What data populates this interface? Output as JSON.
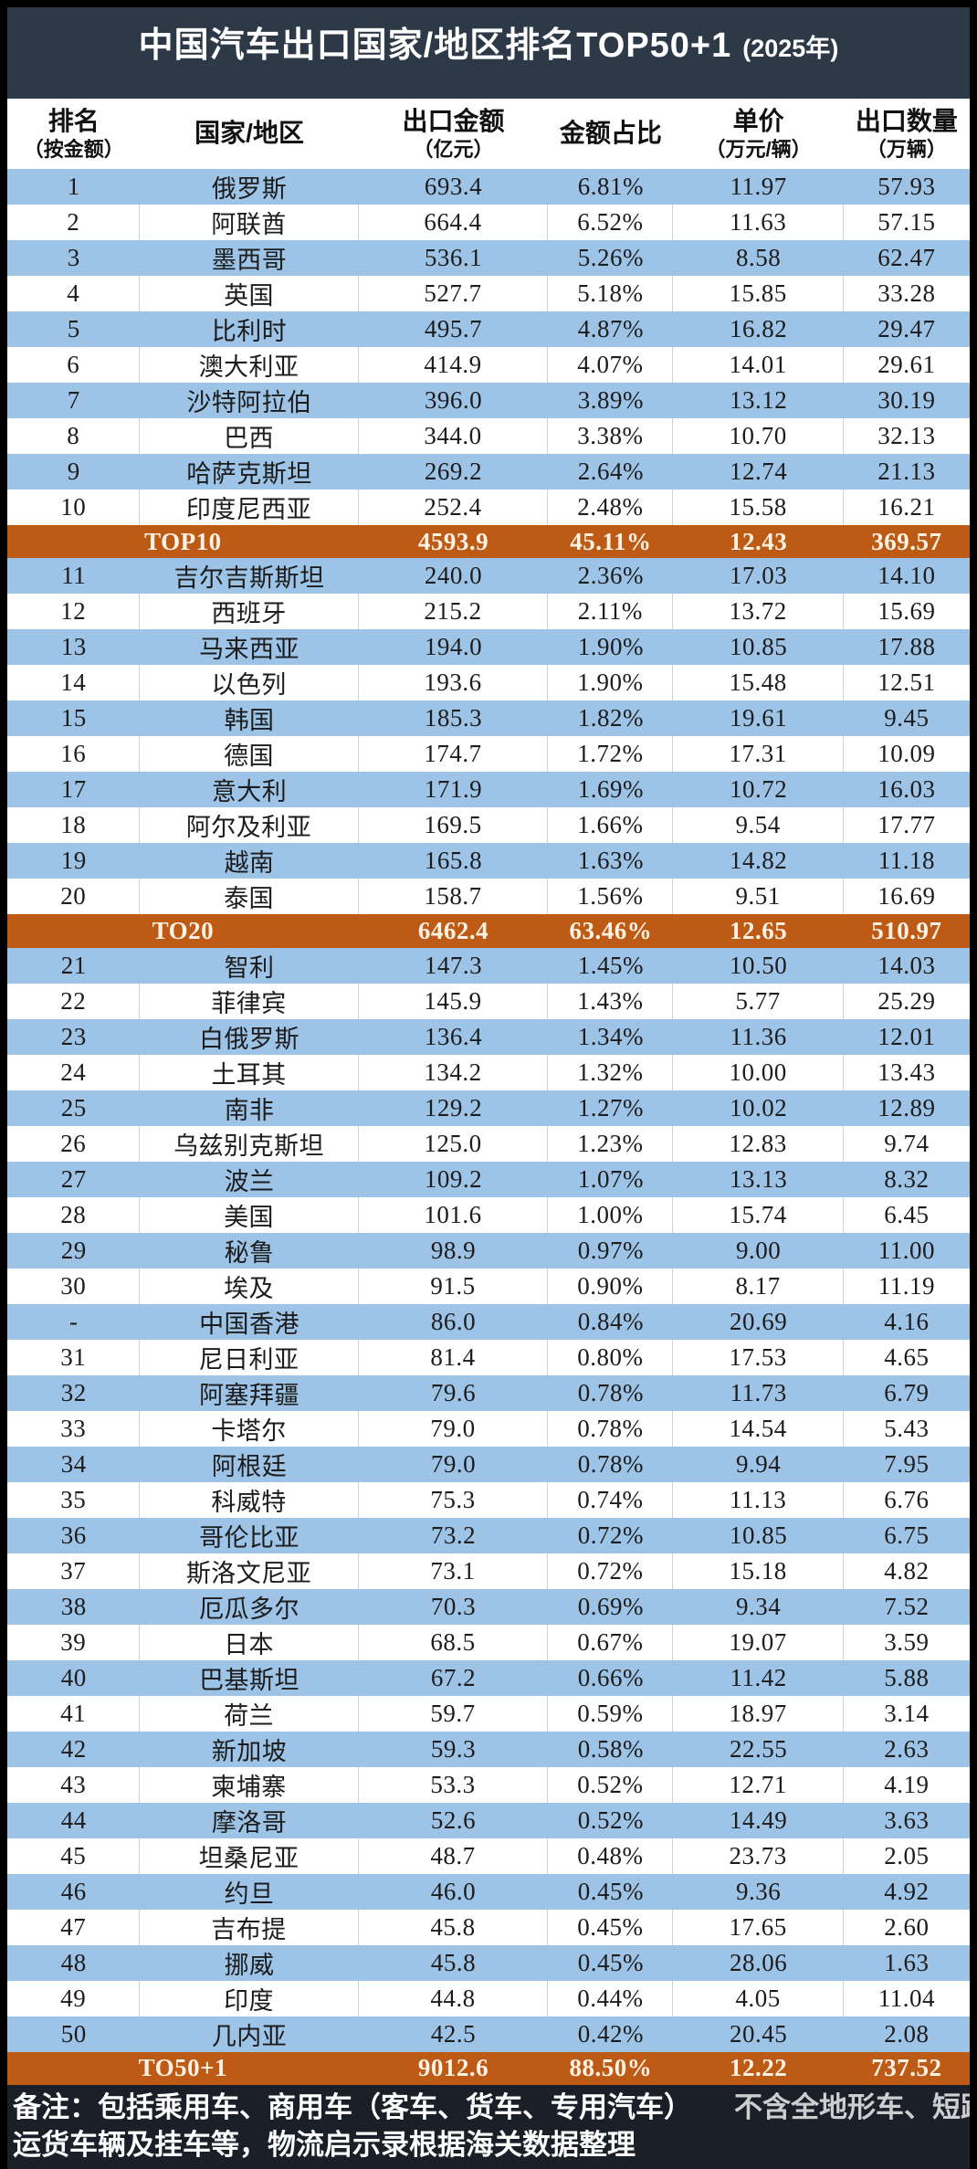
{
  "title": {
    "main": "中国汽车出口国家/地区排名TOP50+1",
    "year": "(2025年)"
  },
  "header": {
    "columns": [
      {
        "label": "排名",
        "sub": "（按金额）"
      },
      {
        "label": "国家/地区",
        "sub": ""
      },
      {
        "label": "出口金额",
        "sub": "（亿元）"
      },
      {
        "label": "金额占比",
        "sub": ""
      },
      {
        "label": "单价",
        "sub": "（万元/辆）"
      },
      {
        "label": "出口数量",
        "sub": "（万辆）"
      }
    ]
  },
  "table": {
    "rows": [
      {
        "rank": "1",
        "country": "俄罗斯",
        "amount": "693.4",
        "share": "6.81%",
        "price": "11.97",
        "qty": "57.93",
        "style": "blue"
      },
      {
        "rank": "2",
        "country": "阿联酋",
        "amount": "664.4",
        "share": "6.52%",
        "price": "11.63",
        "qty": "57.15",
        "style": "white"
      },
      {
        "rank": "3",
        "country": "墨西哥",
        "amount": "536.1",
        "share": "5.26%",
        "price": "8.58",
        "qty": "62.47",
        "style": "blue"
      },
      {
        "rank": "4",
        "country": "英国",
        "amount": "527.7",
        "share": "5.18%",
        "price": "15.85",
        "qty": "33.28",
        "style": "white"
      },
      {
        "rank": "5",
        "country": "比利时",
        "amount": "495.7",
        "share": "4.87%",
        "price": "16.82",
        "qty": "29.47",
        "style": "blue"
      },
      {
        "rank": "6",
        "country": "澳大利亚",
        "amount": "414.9",
        "share": "4.07%",
        "price": "14.01",
        "qty": "29.61",
        "style": "white"
      },
      {
        "rank": "7",
        "country": "沙特阿拉伯",
        "amount": "396.0",
        "share": "3.89%",
        "price": "13.12",
        "qty": "30.19",
        "style": "blue"
      },
      {
        "rank": "8",
        "country": "巴西",
        "amount": "344.0",
        "share": "3.38%",
        "price": "10.70",
        "qty": "32.13",
        "style": "white"
      },
      {
        "rank": "9",
        "country": "哈萨克斯坦",
        "amount": "269.2",
        "share": "2.64%",
        "price": "12.74",
        "qty": "21.13",
        "style": "blue"
      },
      {
        "rank": "10",
        "country": "印度尼西亚",
        "amount": "252.4",
        "share": "2.48%",
        "price": "15.58",
        "qty": "16.21",
        "style": "white"
      },
      {
        "label": "TOP10",
        "amount": "4593.9",
        "share": "45.11%",
        "price": "12.43",
        "qty": "369.57",
        "style": "summary"
      },
      {
        "rank": "11",
        "country": "吉尔吉斯斯坦",
        "amount": "240.0",
        "share": "2.36%",
        "price": "17.03",
        "qty": "14.10",
        "style": "blue"
      },
      {
        "rank": "12",
        "country": "西班牙",
        "amount": "215.2",
        "share": "2.11%",
        "price": "13.72",
        "qty": "15.69",
        "style": "white"
      },
      {
        "rank": "13",
        "country": "马来西亚",
        "amount": "194.0",
        "share": "1.90%",
        "price": "10.85",
        "qty": "17.88",
        "style": "blue"
      },
      {
        "rank": "14",
        "country": "以色列",
        "amount": "193.6",
        "share": "1.90%",
        "price": "15.48",
        "qty": "12.51",
        "style": "white"
      },
      {
        "rank": "15",
        "country": "韩国",
        "amount": "185.3",
        "share": "1.82%",
        "price": "19.61",
        "qty": "9.45",
        "style": "blue"
      },
      {
        "rank": "16",
        "country": "德国",
        "amount": "174.7",
        "share": "1.72%",
        "price": "17.31",
        "qty": "10.09",
        "style": "white"
      },
      {
        "rank": "17",
        "country": "意大利",
        "amount": "171.9",
        "share": "1.69%",
        "price": "10.72",
        "qty": "16.03",
        "style": "blue"
      },
      {
        "rank": "18",
        "country": "阿尔及利亚",
        "amount": "169.5",
        "share": "1.66%",
        "price": "9.54",
        "qty": "17.77",
        "style": "white"
      },
      {
        "rank": "19",
        "country": "越南",
        "amount": "165.8",
        "share": "1.63%",
        "price": "14.82",
        "qty": "11.18",
        "style": "blue"
      },
      {
        "rank": "20",
        "country": "泰国",
        "amount": "158.7",
        "share": "1.56%",
        "price": "9.51",
        "qty": "16.69",
        "style": "white"
      },
      {
        "label": "TO20",
        "amount": "6462.4",
        "share": "63.46%",
        "price": "12.65",
        "qty": "510.97",
        "style": "summary"
      },
      {
        "rank": "21",
        "country": "智利",
        "amount": "147.3",
        "share": "1.45%",
        "price": "10.50",
        "qty": "14.03",
        "style": "blue"
      },
      {
        "rank": "22",
        "country": "菲律宾",
        "amount": "145.9",
        "share": "1.43%",
        "price": "5.77",
        "qty": "25.29",
        "style": "white"
      },
      {
        "rank": "23",
        "country": "白俄罗斯",
        "amount": "136.4",
        "share": "1.34%",
        "price": "11.36",
        "qty": "12.01",
        "style": "blue"
      },
      {
        "rank": "24",
        "country": "土耳其",
        "amount": "134.2",
        "share": "1.32%",
        "price": "10.00",
        "qty": "13.43",
        "style": "white"
      },
      {
        "rank": "25",
        "country": "南非",
        "amount": "129.2",
        "share": "1.27%",
        "price": "10.02",
        "qty": "12.89",
        "style": "blue"
      },
      {
        "rank": "26",
        "country": "乌兹别克斯坦",
        "amount": "125.0",
        "share": "1.23%",
        "price": "12.83",
        "qty": "9.74",
        "style": "white"
      },
      {
        "rank": "27",
        "country": "波兰",
        "amount": "109.2",
        "share": "1.07%",
        "price": "13.13",
        "qty": "8.32",
        "style": "blue"
      },
      {
        "rank": "28",
        "country": "美国",
        "amount": "101.6",
        "share": "1.00%",
        "price": "15.74",
        "qty": "6.45",
        "style": "white"
      },
      {
        "rank": "29",
        "country": "秘鲁",
        "amount": "98.9",
        "share": "0.97%",
        "price": "9.00",
        "qty": "11.00",
        "style": "blue"
      },
      {
        "rank": "30",
        "country": "埃及",
        "amount": "91.5",
        "share": "0.90%",
        "price": "8.17",
        "qty": "11.19",
        "style": "white"
      },
      {
        "rank": "-",
        "country": "中国香港",
        "amount": "86.0",
        "share": "0.84%",
        "price": "20.69",
        "qty": "4.16",
        "style": "blue"
      },
      {
        "rank": "31",
        "country": "尼日利亚",
        "amount": "81.4",
        "share": "0.80%",
        "price": "17.53",
        "qty": "4.65",
        "style": "white"
      },
      {
        "rank": "32",
        "country": "阿塞拜疆",
        "amount": "79.6",
        "share": "0.78%",
        "price": "11.73",
        "qty": "6.79",
        "style": "blue"
      },
      {
        "rank": "33",
        "country": "卡塔尔",
        "amount": "79.0",
        "share": "0.78%",
        "price": "14.54",
        "qty": "5.43",
        "style": "white"
      },
      {
        "rank": "34",
        "country": "阿根廷",
        "amount": "79.0",
        "share": "0.78%",
        "price": "9.94",
        "qty": "7.95",
        "style": "blue"
      },
      {
        "rank": "35",
        "country": "科威特",
        "amount": "75.3",
        "share": "0.74%",
        "price": "11.13",
        "qty": "6.76",
        "style": "white"
      },
      {
        "rank": "36",
        "country": "哥伦比亚",
        "amount": "73.2",
        "share": "0.72%",
        "price": "10.85",
        "qty": "6.75",
        "style": "blue"
      },
      {
        "rank": "37",
        "country": "斯洛文尼亚",
        "amount": "73.1",
        "share": "0.72%",
        "price": "15.18",
        "qty": "4.82",
        "style": "white"
      },
      {
        "rank": "38",
        "country": "厄瓜多尔",
        "amount": "70.3",
        "share": "0.69%",
        "price": "9.34",
        "qty": "7.52",
        "style": "blue"
      },
      {
        "rank": "39",
        "country": "日本",
        "amount": "68.5",
        "share": "0.67%",
        "price": "19.07",
        "qty": "3.59",
        "style": "white"
      },
      {
        "rank": "40",
        "country": "巴基斯坦",
        "amount": "67.2",
        "share": "0.66%",
        "price": "11.42",
        "qty": "5.88",
        "style": "blue"
      },
      {
        "rank": "41",
        "country": "荷兰",
        "amount": "59.7",
        "share": "0.59%",
        "price": "18.97",
        "qty": "3.14",
        "style": "white"
      },
      {
        "rank": "42",
        "country": "新加坡",
        "amount": "59.3",
        "share": "0.58%",
        "price": "22.55",
        "qty": "2.63",
        "style": "blue"
      },
      {
        "rank": "43",
        "country": "柬埔寨",
        "amount": "53.3",
        "share": "0.52%",
        "price": "12.71",
        "qty": "4.19",
        "style": "white"
      },
      {
        "rank": "44",
        "country": "摩洛哥",
        "amount": "52.6",
        "share": "0.52%",
        "price": "14.49",
        "qty": "3.63",
        "style": "blue"
      },
      {
        "rank": "45",
        "country": "坦桑尼亚",
        "amount": "48.7",
        "share": "0.48%",
        "price": "23.73",
        "qty": "2.05",
        "style": "white"
      },
      {
        "rank": "46",
        "country": "约旦",
        "amount": "46.0",
        "share": "0.45%",
        "price": "9.36",
        "qty": "4.92",
        "style": "blue"
      },
      {
        "rank": "47",
        "country": "吉布提",
        "amount": "45.8",
        "share": "0.45%",
        "price": "17.65",
        "qty": "2.60",
        "style": "white"
      },
      {
        "rank": "48",
        "country": "挪威",
        "amount": "45.8",
        "share": "0.45%",
        "price": "28.06",
        "qty": "1.63",
        "style": "blue"
      },
      {
        "rank": "49",
        "country": "印度",
        "amount": "44.8",
        "share": "0.44%",
        "price": "4.05",
        "qty": "11.04",
        "style": "white"
      },
      {
        "rank": "50",
        "country": "几内亚",
        "amount": "42.5",
        "share": "0.42%",
        "price": "20.45",
        "qty": "2.08",
        "style": "blue"
      },
      {
        "label": "TO50+1",
        "amount": "9012.6",
        "share": "88.50%",
        "price": "12.22",
        "qty": "737.52",
        "style": "summary"
      }
    ]
  },
  "footer": {
    "line1_left": "备注：包括乘用车、商用车（客车、货车、专用汽车）",
    "line1_right": "不含全地形车、短距离",
    "line2": "运货车辆及挂车等，物流启示录根据海关数据整理"
  },
  "colors": {
    "title_bar_bg": "#2e3947",
    "row_blue": "#9dc3e6",
    "row_white": "#ffffff",
    "summary_orange": "#bd5a15",
    "summary_text": "#fdf2e3",
    "footer_bg": "#1b1f27",
    "body_text": "#1c1c1c"
  },
  "chart_data": {
    "type": "table",
    "title": "中国汽车出口国家/地区排名TOP50+1 (2025年)",
    "columns": [
      "排名（按金额）",
      "国家/地区",
      "出口金额（亿元）",
      "金额占比",
      "单价（万元/辆）",
      "出口数量（万辆）"
    ],
    "rows": [
      [
        "1",
        "俄罗斯",
        693.4,
        "6.81%",
        11.97,
        57.93
      ],
      [
        "2",
        "阿联酋",
        664.4,
        "6.52%",
        11.63,
        57.15
      ],
      [
        "3",
        "墨西哥",
        536.1,
        "5.26%",
        8.58,
        62.47
      ],
      [
        "4",
        "英国",
        527.7,
        "5.18%",
        15.85,
        33.28
      ],
      [
        "5",
        "比利时",
        495.7,
        "4.87%",
        16.82,
        29.47
      ],
      [
        "6",
        "澳大利亚",
        414.9,
        "4.07%",
        14.01,
        29.61
      ],
      [
        "7",
        "沙特阿拉伯",
        396.0,
        "3.89%",
        13.12,
        30.19
      ],
      [
        "8",
        "巴西",
        344.0,
        "3.38%",
        10.7,
        32.13
      ],
      [
        "9",
        "哈萨克斯坦",
        269.2,
        "2.64%",
        12.74,
        21.13
      ],
      [
        "10",
        "印度尼西亚",
        252.4,
        "2.48%",
        15.58,
        16.21
      ],
      [
        "TOP10",
        "",
        4593.9,
        "45.11%",
        12.43,
        369.57
      ],
      [
        "11",
        "吉尔吉斯斯坦",
        240.0,
        "2.36%",
        17.03,
        14.1
      ],
      [
        "12",
        "西班牙",
        215.2,
        "2.11%",
        13.72,
        15.69
      ],
      [
        "13",
        "马来西亚",
        194.0,
        "1.90%",
        10.85,
        17.88
      ],
      [
        "14",
        "以色列",
        193.6,
        "1.90%",
        15.48,
        12.51
      ],
      [
        "15",
        "韩国",
        185.3,
        "1.82%",
        19.61,
        9.45
      ],
      [
        "16",
        "德国",
        174.7,
        "1.72%",
        17.31,
        10.09
      ],
      [
        "17",
        "意大利",
        171.9,
        "1.69%",
        10.72,
        16.03
      ],
      [
        "18",
        "阿尔及利亚",
        169.5,
        "1.66%",
        9.54,
        17.77
      ],
      [
        "19",
        "越南",
        165.8,
        "1.63%",
        14.82,
        11.18
      ],
      [
        "20",
        "泰国",
        158.7,
        "1.56%",
        9.51,
        16.69
      ],
      [
        "TO20",
        "",
        6462.4,
        "63.46%",
        12.65,
        510.97
      ],
      [
        "21",
        "智利",
        147.3,
        "1.45%",
        10.5,
        14.03
      ],
      [
        "22",
        "菲律宾",
        145.9,
        "1.43%",
        5.77,
        25.29
      ],
      [
        "23",
        "白俄罗斯",
        136.4,
        "1.34%",
        11.36,
        12.01
      ],
      [
        "24",
        "土耳其",
        134.2,
        "1.32%",
        10.0,
        13.43
      ],
      [
        "25",
        "南非",
        129.2,
        "1.27%",
        10.02,
        12.89
      ],
      [
        "26",
        "乌兹别克斯坦",
        125.0,
        "1.23%",
        12.83,
        9.74
      ],
      [
        "27",
        "波兰",
        109.2,
        "1.07%",
        13.13,
        8.32
      ],
      [
        "28",
        "美国",
        101.6,
        "1.00%",
        15.74,
        6.45
      ],
      [
        "29",
        "秘鲁",
        98.9,
        "0.97%",
        9.0,
        11.0
      ],
      [
        "30",
        "埃及",
        91.5,
        "0.90%",
        8.17,
        11.19
      ],
      [
        "-",
        "中国香港",
        86.0,
        "0.84%",
        20.69,
        4.16
      ],
      [
        "31",
        "尼日利亚",
        81.4,
        "0.80%",
        17.53,
        4.65
      ],
      [
        "32",
        "阿塞拜疆",
        79.6,
        "0.78%",
        11.73,
        6.79
      ],
      [
        "33",
        "卡塔尔",
        79.0,
        "0.78%",
        14.54,
        5.43
      ],
      [
        "34",
        "阿根廷",
        79.0,
        "0.78%",
        9.94,
        7.95
      ],
      [
        "35",
        "科威特",
        75.3,
        "0.74%",
        11.13,
        6.76
      ],
      [
        "36",
        "哥伦比亚",
        73.2,
        "0.72%",
        10.85,
        6.75
      ],
      [
        "37",
        "斯洛文尼亚",
        73.1,
        "0.72%",
        15.18,
        4.82
      ],
      [
        "38",
        "厄瓜多尔",
        70.3,
        "0.69%",
        9.34,
        7.52
      ],
      [
        "39",
        "日本",
        68.5,
        "0.67%",
        19.07,
        3.59
      ],
      [
        "40",
        "巴基斯坦",
        67.2,
        "0.66%",
        11.42,
        5.88
      ],
      [
        "41",
        "荷兰",
        59.7,
        "0.59%",
        18.97,
        3.14
      ],
      [
        "42",
        "新加坡",
        59.3,
        "0.58%",
        22.55,
        2.63
      ],
      [
        "43",
        "柬埔寨",
        53.3,
        "0.52%",
        12.71,
        4.19
      ],
      [
        "44",
        "摩洛哥",
        52.6,
        "0.52%",
        14.49,
        3.63
      ],
      [
        "45",
        "坦桑尼亚",
        48.7,
        "0.48%",
        23.73,
        2.05
      ],
      [
        "46",
        "约旦",
        46.0,
        "0.45%",
        9.36,
        4.92
      ],
      [
        "47",
        "吉布提",
        45.8,
        "0.45%",
        17.65,
        2.6
      ],
      [
        "48",
        "挪威",
        45.8,
        "0.45%",
        28.06,
        1.63
      ],
      [
        "49",
        "印度",
        44.8,
        "0.44%",
        4.05,
        11.04
      ],
      [
        "50",
        "几内亚",
        42.5,
        "0.42%",
        20.45,
        2.08
      ],
      [
        "TO50+1",
        "",
        9012.6,
        "88.50%",
        12.22,
        737.52
      ]
    ]
  }
}
